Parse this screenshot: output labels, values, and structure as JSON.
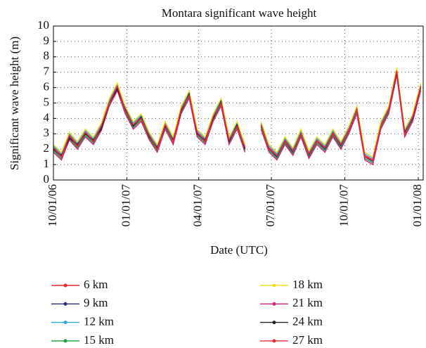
{
  "chart_data": {
    "type": "line",
    "title": "Montara significant wave height",
    "ylabel": "Significant wave height (m)",
    "xlabel": "Date (UTC)",
    "x": [
      "10/01/06",
      "10/11/06",
      "10/21/06",
      "10/31/06",
      "11/10/06",
      "11/20/06",
      "11/30/06",
      "12/10/06",
      "12/20/06",
      "12/30/06",
      "01/09/07",
      "01/19/07",
      "01/29/07",
      "02/08/07",
      "02/18/07",
      "02/28/07",
      "03/10/07",
      "03/20/07",
      "03/30/07",
      "04/09/07",
      "04/19/07",
      "04/29/07",
      "05/09/07",
      "05/19/07",
      "05/29/07",
      "06/08/07",
      "06/18/07",
      "06/28/07",
      "07/08/07",
      "07/18/07",
      "07/28/07",
      "08/07/07",
      "08/17/07",
      "08/27/07",
      "09/06/07",
      "09/16/07",
      "09/26/07",
      "10/06/07",
      "10/16/07",
      "10/26/07",
      "11/05/07",
      "11/15/07",
      "11/25/07",
      "12/05/07",
      "12/15/07",
      "12/25/07",
      "01/04/08"
    ],
    "xlim": [
      "10/01/06",
      "01/08/08"
    ],
    "xticks": [
      "10/01/06",
      "01/01/07",
      "04/01/07",
      "07/01/07",
      "10/01/07",
      "01/01/08"
    ],
    "ylim": [
      0,
      10
    ],
    "yticks": [
      0,
      1,
      2,
      3,
      4,
      5,
      6,
      7,
      8,
      9,
      10
    ],
    "grid": true,
    "series": [
      {
        "name": "6 km",
        "color": "#e8282a",
        "values": [
          2.1,
          1.6,
          2.9,
          2.3,
          3.1,
          2.6,
          3.5,
          5.1,
          6.1,
          4.6,
          3.6,
          4.1,
          2.9,
          2.1,
          3.6,
          2.6,
          4.6,
          5.6,
          3.1,
          2.6,
          4.1,
          5.1,
          2.6,
          3.6,
          2.1,
          null,
          3.6,
          2.1,
          1.6,
          2.6,
          1.9,
          3.1,
          1.7,
          2.6,
          2.1,
          3.1,
          2.3,
          3.3,
          4.6,
          1.6,
          1.3,
          3.6,
          4.6,
          7.1,
          3.1,
          4.1,
          6.1
        ]
      },
      {
        "name": "9 km",
        "color": "#2b2f7a",
        "values": [
          2.0,
          1.5,
          2.8,
          2.2,
          3.0,
          2.5,
          3.4,
          5.0,
          6.0,
          4.5,
          3.5,
          4.0,
          2.8,
          2.0,
          3.5,
          2.5,
          4.5,
          5.5,
          3.0,
          2.5,
          4.0,
          5.0,
          2.5,
          3.5,
          2.0,
          null,
          3.5,
          2.0,
          1.5,
          2.5,
          1.8,
          3.0,
          1.6,
          2.5,
          2.0,
          3.0,
          2.2,
          3.2,
          4.5,
          1.5,
          1.2,
          3.5,
          4.5,
          7.0,
          3.0,
          4.0,
          6.0
        ]
      },
      {
        "name": "12 km",
        "color": "#2fa8e0",
        "values": [
          2.2,
          1.7,
          3.0,
          2.4,
          3.2,
          2.7,
          3.6,
          5.2,
          6.2,
          4.7,
          3.7,
          4.2,
          3.0,
          2.2,
          3.7,
          2.7,
          4.7,
          5.7,
          3.2,
          2.7,
          4.2,
          5.2,
          2.7,
          3.7,
          2.2,
          null,
          3.7,
          2.2,
          1.7,
          2.7,
          2.0,
          3.2,
          1.8,
          2.7,
          2.2,
          3.2,
          2.4,
          3.4,
          4.7,
          1.7,
          1.4,
          3.7,
          4.7,
          7.2,
          3.2,
          4.2,
          6.2
        ]
      },
      {
        "name": "15 km",
        "color": "#1a9e3f",
        "values": [
          1.9,
          1.4,
          2.7,
          2.1,
          2.9,
          2.4,
          3.3,
          4.9,
          5.9,
          4.4,
          3.4,
          3.9,
          2.7,
          1.9,
          3.4,
          2.4,
          4.4,
          5.4,
          2.9,
          2.4,
          3.9,
          4.9,
          2.4,
          3.4,
          1.9,
          null,
          3.4,
          1.9,
          1.4,
          2.4,
          1.7,
          2.9,
          1.5,
          2.4,
          1.9,
          2.9,
          2.1,
          3.1,
          4.4,
          1.4,
          1.1,
          3.4,
          4.4,
          6.9,
          2.9,
          3.9,
          5.9
        ]
      },
      {
        "name": "18 km",
        "color": "#f0e020",
        "values": [
          2.3,
          1.8,
          3.1,
          2.5,
          3.3,
          2.8,
          3.7,
          5.3,
          6.3,
          4.8,
          3.8,
          4.3,
          3.1,
          2.3,
          3.8,
          2.8,
          4.8,
          5.8,
          3.3,
          2.8,
          4.3,
          5.3,
          2.8,
          3.8,
          2.3,
          null,
          3.8,
          2.3,
          1.8,
          2.8,
          2.1,
          3.3,
          1.9,
          2.8,
          2.3,
          3.3,
          2.5,
          3.5,
          4.8,
          1.8,
          1.5,
          3.8,
          4.8,
          7.3,
          3.3,
          4.3,
          6.3
        ]
      },
      {
        "name": "21 km",
        "color": "#d4247e",
        "values": [
          1.8,
          1.3,
          2.6,
          2.0,
          2.8,
          2.3,
          3.2,
          4.8,
          5.8,
          4.3,
          3.3,
          3.8,
          2.6,
          1.8,
          3.3,
          2.3,
          4.3,
          5.3,
          2.8,
          2.3,
          3.8,
          4.8,
          2.3,
          3.3,
          1.8,
          null,
          3.3,
          1.8,
          1.3,
          2.3,
          1.6,
          2.8,
          1.4,
          2.3,
          1.8,
          2.8,
          2.0,
          3.0,
          4.3,
          1.3,
          1.0,
          3.3,
          4.3,
          6.8,
          2.8,
          3.8,
          5.8
        ]
      },
      {
        "name": "24 km",
        "color": "#222222",
        "values": [
          2.0,
          1.6,
          2.7,
          2.3,
          3.0,
          2.6,
          3.3,
          5.0,
          5.9,
          4.6,
          3.5,
          4.1,
          2.8,
          2.1,
          3.5,
          2.6,
          4.5,
          5.6,
          3.0,
          2.6,
          4.0,
          5.1,
          2.5,
          3.6,
          2.0,
          null,
          3.6,
          2.0,
          1.6,
          2.5,
          1.9,
          3.0,
          1.7,
          2.5,
          2.1,
          3.0,
          2.3,
          3.2,
          4.6,
          1.5,
          1.3,
          3.5,
          4.6,
          7.0,
          3.1,
          4.0,
          6.1
        ]
      },
      {
        "name": "27 km",
        "color": "#e8283a",
        "values": [
          2.1,
          1.5,
          2.9,
          2.2,
          3.1,
          2.5,
          3.5,
          5.0,
          6.1,
          4.5,
          3.6,
          4.0,
          2.9,
          2.0,
          3.6,
          2.5,
          4.6,
          5.5,
          3.1,
          2.5,
          4.1,
          5.0,
          2.6,
          3.5,
          2.1,
          null,
          3.6,
          2.0,
          1.6,
          2.5,
          1.9,
          3.0,
          1.7,
          2.5,
          2.1,
          3.0,
          2.3,
          3.2,
          4.6,
          1.5,
          1.3,
          3.5,
          4.6,
          7.1,
          3.0,
          4.1,
          6.1
        ]
      }
    ]
  }
}
